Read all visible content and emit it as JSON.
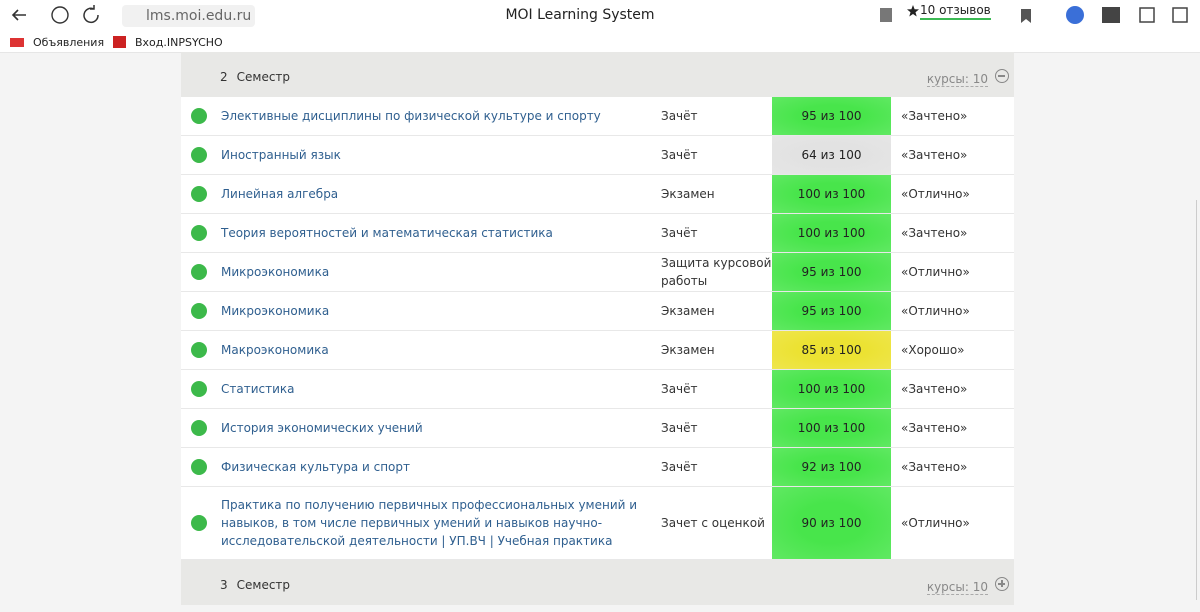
{
  "browser": {
    "url": "lms.moi.edu.ru",
    "title": "MOI Learning System",
    "reviews": "10 отзывов",
    "bookmarks": [
      "Объявления",
      "Вход.INPSYCHO"
    ]
  },
  "semesters": [
    {
      "label": "2",
      "name": "Семестр",
      "courses": "курсы: 10",
      "expanded": true,
      "rows": [
        {
          "name": "Элективные дисциплины по физической культуре и спорту",
          "type": "Зачёт",
          "score": "95 из 100",
          "color": "#48e54b",
          "grade": "«Зачтено»"
        },
        {
          "name": "Иностранный язык",
          "type": "Зачёт",
          "score": "64 из 100",
          "color": "#e2e2e2",
          "grade": "«Зачтено»"
        },
        {
          "name": "Линейная алгебра",
          "type": "Экзамен",
          "score": "100 из 100",
          "color": "#48e54b",
          "grade": "«Отлично»"
        },
        {
          "name": "Теория вероятностей и математическая статистика",
          "type": "Зачёт",
          "score": "100 из 100",
          "color": "#48e54b",
          "grade": "«Зачтено»"
        },
        {
          "name": "Микроэкономика",
          "type": "Защита курсовой работы",
          "score": "95 из 100",
          "color": "#48e54b",
          "grade": "«Отлично»"
        },
        {
          "name": "Микроэкономика",
          "type": "Экзамен",
          "score": "95 из 100",
          "color": "#48e54b",
          "grade": "«Отлично»"
        },
        {
          "name": "Макроэкономика",
          "type": "Экзамен",
          "score": "85 из 100",
          "color": "#ece232",
          "grade": "«Хорошо»"
        },
        {
          "name": "Статистика",
          "type": "Зачёт",
          "score": "100 из 100",
          "color": "#48e54b",
          "grade": "«Зачтено»"
        },
        {
          "name": "История экономических учений",
          "type": "Зачёт",
          "score": "100 из 100",
          "color": "#48e54b",
          "grade": "«Зачтено»"
        },
        {
          "name": "Физическая культура и спорт",
          "type": "Зачёт",
          "score": "92 из 100",
          "color": "#48e54b",
          "grade": "«Зачтено»"
        },
        {
          "name": "Практика по получению первичных профессиональных умений и навыков, в том числе первичных умений и навыков научно-исследовательской деятельности | УП.ВЧ | Учебная практика",
          "type": "Зачет с оценкой",
          "score": "90 из 100",
          "color": "#48e54b",
          "grade": "«Отлично»"
        }
      ]
    },
    {
      "label": "3",
      "name": "Семестр",
      "courses": "курсы: 10",
      "expanded": false,
      "rows": []
    }
  ]
}
